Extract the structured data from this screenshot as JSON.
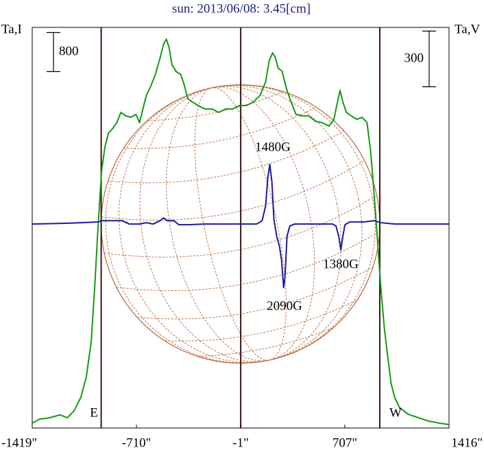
{
  "chart_data": {
    "type": "line",
    "title": "sun: 2013/06/08: 3.45[cm]",
    "ylabel": "Ta,I",
    "y2label": "Ta,V",
    "xlim": [
      -1419,
      1416
    ],
    "xticks": [
      {
        "value": -1419,
        "label": "-1419\""
      },
      {
        "value": -710,
        "label": "-710\""
      },
      {
        "value": -1,
        "label": "-1\""
      },
      {
        "value": 707,
        "label": "707\""
      },
      {
        "value": 1416,
        "label": "1416\""
      }
    ],
    "ylim": [
      0,
      8200
    ],
    "y2lim": [
      -1100,
      1060
    ],
    "y_scale_bar": 800,
    "y2_scale_bar": 300,
    "vlines": [
      -950,
      -1,
      945
    ],
    "limb_labels": [
      "E",
      "W"
    ],
    "annotations": [
      "1480G",
      "2090G",
      "1380G"
    ],
    "series": [
      {
        "name": "Ta,I",
        "color": "#119911",
        "x": [
          -1419,
          -1370,
          -1300,
          -1230,
          -1180,
          -1135,
          -1088,
          -1051,
          -1018,
          -994,
          -971,
          -947,
          -924,
          -900,
          -877,
          -844,
          -816,
          -783,
          -750,
          -713,
          -689,
          -666,
          -643,
          -619,
          -582,
          -549,
          -525,
          -507,
          -488,
          -469,
          -441,
          -408,
          -385,
          -361,
          -328,
          -291,
          -244,
          -197,
          -150,
          -103,
          -56,
          -9,
          38,
          84,
          131,
          169,
          192,
          216,
          235,
          253,
          281,
          310,
          342,
          375,
          413,
          460,
          507,
          553,
          600,
          633,
          657,
          675,
          694,
          718,
          750,
          788,
          825,
          858,
          882,
          905,
          929,
          952,
          976,
          999,
          1022,
          1046,
          1079,
          1140,
          1210,
          1280,
          1351,
          1416
        ],
        "values": [
          100,
          180,
          210,
          270,
          210,
          350,
          630,
          1050,
          1760,
          2880,
          4140,
          5270,
          5760,
          6040,
          6110,
          6250,
          6460,
          6390,
          6360,
          6420,
          6250,
          6530,
          6810,
          6950,
          7230,
          7580,
          7860,
          7960,
          7790,
          7440,
          7300,
          7230,
          7020,
          6740,
          6670,
          6600,
          6530,
          6530,
          6460,
          6530,
          6530,
          6600,
          6600,
          6670,
          6810,
          7090,
          7510,
          7680,
          7580,
          7370,
          7300,
          6950,
          6670,
          6420,
          6390,
          6390,
          6280,
          6250,
          6180,
          6320,
          6670,
          6910,
          6670,
          6460,
          6390,
          6320,
          6360,
          6250,
          5690,
          4840,
          3860,
          2880,
          2040,
          1470,
          910,
          630,
          420,
          280,
          210,
          140,
          100,
          70
        ]
      },
      {
        "name": "Ta,V",
        "color": "#1a1a99",
        "axis": "y2",
        "x": [
          -1419,
          -1182,
          -971,
          -947,
          -854,
          -807,
          -760,
          -689,
          -643,
          -596,
          -549,
          -525,
          -502,
          -455,
          -422,
          -361,
          -244,
          -9,
          108,
          145,
          169,
          183,
          197,
          211,
          225,
          244,
          263,
          277,
          291,
          300,
          314,
          333,
          366,
          553,
          624,
          647,
          666,
          680,
          694,
          708,
          741,
          835,
          905,
          952,
          1046,
          1416
        ],
        "values": [
          0,
          4,
          11,
          18,
          18,
          18,
          0,
          0,
          7,
          0,
          18,
          33,
          18,
          18,
          -4,
          -4,
          0,
          0,
          0,
          18,
          100,
          247,
          321,
          229,
          26,
          -66,
          -122,
          -196,
          -343,
          -288,
          -66,
          -11,
          0,
          0,
          0,
          -11,
          -66,
          -140,
          -66,
          -4,
          11,
          11,
          18,
          7,
          0,
          0
        ]
      }
    ]
  }
}
